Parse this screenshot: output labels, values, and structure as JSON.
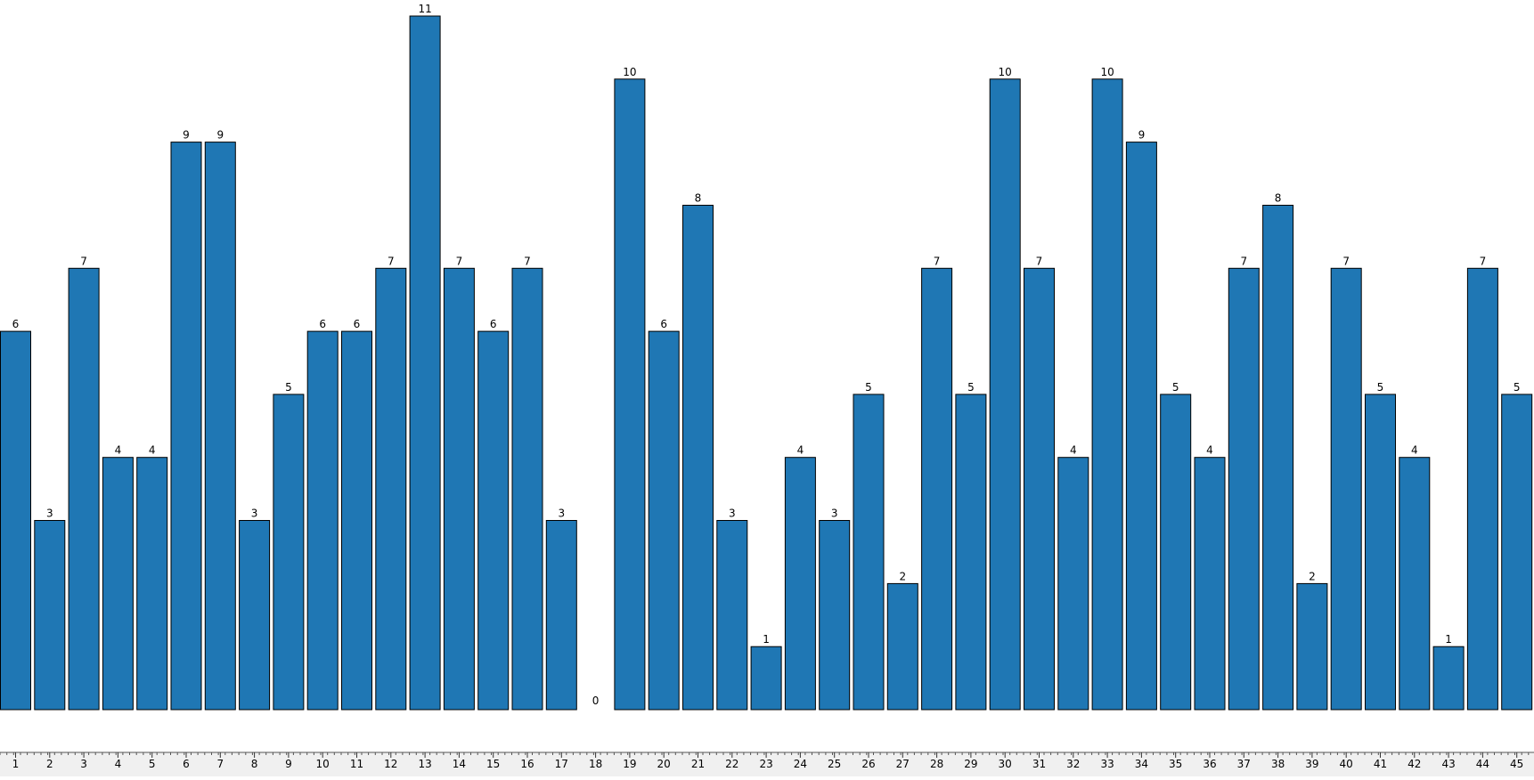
{
  "chart_data": {
    "type": "bar",
    "title": "",
    "xlabel": "",
    "ylabel": "",
    "categories": [
      "1",
      "2",
      "3",
      "4",
      "5",
      "6",
      "7",
      "8",
      "9",
      "10",
      "11",
      "12",
      "13",
      "14",
      "15",
      "16",
      "17",
      "18",
      "19",
      "20",
      "21",
      "22",
      "23",
      "24",
      "25",
      "26",
      "27",
      "28",
      "29",
      "30",
      "31",
      "32",
      "33",
      "34",
      "35",
      "36",
      "37",
      "38",
      "39",
      "40",
      "41",
      "42",
      "43",
      "44",
      "45"
    ],
    "values": [
      6,
      3,
      7,
      4,
      4,
      9,
      9,
      3,
      5,
      6,
      6,
      7,
      11,
      7,
      6,
      7,
      3,
      0,
      10,
      6,
      8,
      3,
      1,
      4,
      3,
      5,
      2,
      7,
      5,
      10,
      7,
      4,
      10,
      9,
      5,
      4,
      7,
      8,
      2,
      7,
      5,
      4,
      1,
      7,
      5
    ],
    "ylim": [
      0,
      11
    ],
    "grid": false,
    "legend": "none",
    "data_labels": true,
    "colors": {
      "bar_fill": "#1f77b4",
      "bar_stroke": "#000000",
      "axis_background": "#f0f0f0",
      "text": "#000000"
    }
  }
}
